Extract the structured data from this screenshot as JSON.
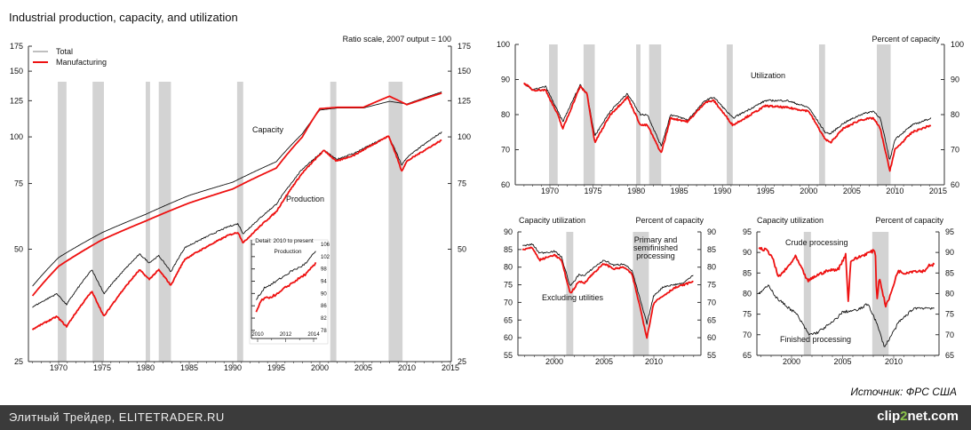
{
  "footer": {
    "site_label": "Элитный Трейдер, ELITETRADER.RU",
    "logo_prefix": "clip",
    "logo_mid": "2",
    "logo_suffix": "net.com"
  },
  "source_label": "Источник: ФРС США",
  "colors": {
    "total": "#111111",
    "manufacturing": "#ee1111",
    "recession": "#d3d3d3"
  },
  "chart_data": [
    {
      "id": "main",
      "type": "line",
      "title": "Industrial production, capacity, and utilization",
      "subtitle": "Ratio scale, 2007 output = 100",
      "yscale": "log",
      "ylim": [
        25,
        175
      ],
      "yticks": [
        25,
        50,
        75,
        100,
        125,
        150,
        175
      ],
      "xlim": [
        1967,
        2015
      ],
      "xticks": [
        1970,
        1975,
        1980,
        1985,
        1990,
        1995,
        2000,
        2005,
        2010,
        2015
      ],
      "legend": {
        "position": "top-left",
        "entries": [
          "Total",
          "Manufacturing"
        ]
      },
      "annotations": [
        "Capacity",
        "Production"
      ],
      "recessions": [
        [
          1969.9,
          1970.9
        ],
        [
          1973.9,
          1975.2
        ],
        [
          1980.0,
          1980.5
        ],
        [
          1981.5,
          1982.9
        ],
        [
          1990.5,
          1991.2
        ],
        [
          2001.2,
          2001.9
        ],
        [
          2007.9,
          2009.5
        ]
      ],
      "series": [
        {
          "name": "Capacity - Total",
          "color": "total",
          "x": [
            1967,
            1970,
            1975,
            1980,
            1985,
            1990,
            1995,
            1998,
            2000,
            2002,
            2005,
            2008,
            2010,
            2014
          ],
          "y": [
            39.8,
            47.5,
            55.4,
            62,
            69.7,
            75.6,
            85.8,
            102,
            118,
            119.5,
            119.5,
            124.5,
            122.5,
            132
          ]
        },
        {
          "name": "Capacity - Manufacturing",
          "color": "manufacturing",
          "x": [
            1967,
            1970,
            1975,
            1980,
            1985,
            1990,
            1995,
            1998,
            2000,
            2002,
            2005,
            2008,
            2010,
            2014
          ],
          "y": [
            37.5,
            45,
            53,
            59.5,
            66.5,
            72.5,
            82.5,
            100,
            119,
            120,
            120,
            128.5,
            122,
            131
          ]
        },
        {
          "name": "Production - Total",
          "color": "total",
          "x": [
            1967,
            1969.8,
            1970.9,
            1973.8,
            1975.2,
            1979.3,
            1980.4,
            1981.5,
            1982.9,
            1984.5,
            1989.5,
            1990.6,
            1991.2,
            1995,
            1998,
            2000.5,
            2001.9,
            2004,
            2007.9,
            2009.4,
            2010,
            2014
          ],
          "y": [
            35,
            38,
            35.5,
            44,
            38,
            48.5,
            46,
            48,
            43.5,
            50.5,
            57.5,
            58.5,
            55,
            66,
            82,
            92,
            87,
            90.5,
            100.5,
            84,
            88,
            103
          ]
        },
        {
          "name": "Production - Manufacturing",
          "color": "manufacturing",
          "x": [
            1967,
            1969.8,
            1970.9,
            1973.8,
            1975.2,
            1979.3,
            1980.4,
            1981.5,
            1982.9,
            1984.5,
            1989.5,
            1990.6,
            1991.2,
            1995,
            1998,
            2000.5,
            2001.9,
            2004,
            2007.9,
            2009.4,
            2010,
            2014
          ],
          "y": [
            30.5,
            33,
            31,
            38.5,
            33,
            44,
            41.5,
            44,
            40,
            47,
            54.5,
            55.5,
            52,
            63,
            80,
            92,
            86,
            89.5,
            100.5,
            81,
            86,
            98
          ]
        }
      ]
    },
    {
      "id": "inset",
      "type": "line",
      "title": "Detail: 2010 to present",
      "subtitle": "Production",
      "ylim": [
        76,
        108
      ],
      "yticks": [
        78,
        82,
        86,
        90,
        94,
        98,
        102,
        106
      ],
      "xlim": [
        2009.8,
        2014.3
      ],
      "xticks": [
        2010,
        2012,
        2014
      ],
      "series": [
        {
          "name": "Total",
          "color": "total",
          "x": [
            2009.9,
            2010.5,
            2011,
            2011.5,
            2012,
            2012.5,
            2013,
            2013.5,
            2014.2
          ],
          "y": [
            88,
            92,
            93,
            94.5,
            96,
            97.5,
            98.5,
            100,
            104
          ]
        },
        {
          "name": "Manufacturing",
          "color": "manufacturing",
          "x": [
            2009.9,
            2010.3,
            2011,
            2011.5,
            2012,
            2012.5,
            2013,
            2013.5,
            2014.2
          ],
          "y": [
            84,
            88,
            89,
            90,
            92,
            93.5,
            95,
            96.5,
            100
          ]
        }
      ]
    },
    {
      "id": "utilization",
      "type": "line",
      "subtitle": "Percent of capacity",
      "annotations": [
        "Utilization"
      ],
      "ylim": [
        60,
        100
      ],
      "yticks": [
        60,
        70,
        80,
        90,
        100
      ],
      "xlim": [
        1967,
        2014.5
      ],
      "xticks": [
        1970,
        1975,
        1980,
        1985,
        1990,
        1995,
        2000,
        2005,
        2010,
        2015
      ],
      "recessions": [
        [
          1969.9,
          1970.9
        ],
        [
          1973.9,
          1975.2
        ],
        [
          1980.0,
          1980.5
        ],
        [
          1981.5,
          1982.9
        ],
        [
          1990.5,
          1991.2
        ],
        [
          2001.2,
          2001.9
        ],
        [
          2007.9,
          2009.5
        ]
      ],
      "series": [
        {
          "name": "Total",
          "color": "total",
          "x": [
            1967,
            1968,
            1969.5,
            1970.9,
            1971.5,
            1973.5,
            1974.3,
            1975.2,
            1977,
            1979,
            1980.5,
            1981.3,
            1982.9,
            1984,
            1986,
            1988,
            1989,
            1991.2,
            1995,
            1997.5,
            2000,
            2001.9,
            2002.5,
            2004,
            2006,
            2007.5,
            2008.3,
            2009.4,
            2010,
            2012,
            2014.2
          ],
          "y": [
            89,
            87,
            88,
            81,
            78,
            88.5,
            86,
            74,
            81,
            86,
            80,
            80,
            71,
            80,
            78.5,
            84,
            85,
            79,
            84,
            84,
            82,
            75,
            74.5,
            77.5,
            80,
            81,
            79,
            67,
            73,
            77,
            79
          ]
        },
        {
          "name": "Manufacturing",
          "color": "manufacturing",
          "x": [
            1967,
            1968,
            1969.5,
            1970.9,
            1971.5,
            1973.5,
            1974.3,
            1975.2,
            1977,
            1979,
            1980.5,
            1981.3,
            1982.9,
            1984,
            1986,
            1988,
            1989,
            1991.2,
            1995,
            1997.5,
            2000,
            2001.9,
            2002.5,
            2004,
            2006,
            2007.5,
            2008.3,
            2009.4,
            2010,
            2012,
            2014.2
          ],
          "y": [
            89,
            87,
            87,
            80,
            76,
            88,
            86,
            72,
            80,
            85,
            77,
            77,
            69,
            79,
            78,
            83.5,
            84,
            77,
            82.5,
            82,
            81,
            73,
            72,
            76,
            78.5,
            79,
            76,
            64,
            70,
            75,
            77
          ]
        }
      ]
    },
    {
      "id": "stage-a",
      "type": "line",
      "title": "Capacity utilization",
      "subtitle": "Percent of capacity",
      "annotations": [
        "Primary and",
        "semifinished",
        "processing",
        "Excluding utilities"
      ],
      "ylim": [
        55,
        90
      ],
      "yticks": [
        55,
        60,
        65,
        70,
        75,
        80,
        85,
        90
      ],
      "xlim": [
        1996.8,
        2014
      ],
      "xticks": [
        2000,
        2005,
        2010
      ],
      "recessions": [
        [
          2001.2,
          2001.9
        ],
        [
          2007.9,
          2009.5
        ]
      ],
      "series": [
        {
          "name": "Primary and semifinished processing",
          "color": "total",
          "x": [
            1996.8,
            1997.8,
            1998.5,
            2000,
            2000.7,
            2001.6,
            2002.5,
            2003,
            2004,
            2005,
            2006,
            2007,
            2007.8,
            2008.5,
            2009.3,
            2010,
            2011,
            2012,
            2013,
            2014
          ],
          "y": [
            86,
            86.5,
            84,
            84.5,
            83,
            74.5,
            78,
            77.5,
            80,
            82,
            80.5,
            81,
            79,
            72,
            64,
            72,
            74.5,
            75,
            75.5,
            78
          ]
        },
        {
          "name": "Excluding utilities",
          "color": "manufacturing",
          "x": [
            1996.8,
            1997.8,
            1998.5,
            2000,
            2000.7,
            2001.6,
            2002.5,
            2003,
            2004,
            2005,
            2006,
            2007,
            2007.8,
            2008.5,
            2009.3,
            2010,
            2011,
            2012,
            2013,
            2014
          ],
          "y": [
            85,
            85.5,
            82,
            83.5,
            82,
            72.5,
            76,
            75.5,
            78.5,
            81,
            79.5,
            80,
            78,
            70,
            60,
            70,
            72,
            74,
            75,
            76
          ]
        }
      ]
    },
    {
      "id": "stage-b",
      "type": "line",
      "title": "Capacity utilization",
      "subtitle": "Percent of capacity",
      "annotations": [
        "Crude processing",
        "Finished processing"
      ],
      "ylim": [
        65,
        95
      ],
      "yticks": [
        65,
        70,
        75,
        80,
        85,
        90,
        95
      ],
      "xlim": [
        1996.8,
        2014
      ],
      "xticks": [
        2000,
        2005,
        2010
      ],
      "recessions": [
        [
          2001.2,
          2001.9
        ],
        [
          2007.9,
          2009.5
        ]
      ],
      "series": [
        {
          "name": "Crude processing",
          "color": "manufacturing",
          "x": [
            1996.8,
            1997.6,
            1998.1,
            1998.7,
            1999.5,
            2000.4,
            2001,
            2001.6,
            2002.5,
            2003.5,
            2004.6,
            2005.3,
            2005.55,
            2005.8,
            2006.3,
            2007.6,
            2008.2,
            2008.35,
            2008.6,
            2009.2,
            2009.6,
            2010.4,
            2011,
            2012,
            2013,
            2013.5,
            2014
          ],
          "y": [
            91,
            90.5,
            89,
            84,
            86,
            89,
            86,
            83,
            84.5,
            85.5,
            86,
            89.5,
            78,
            88,
            88.5,
            90,
            90.5,
            78,
            84,
            77,
            79,
            85.5,
            85,
            85.5,
            85.5,
            87,
            87
          ]
        },
        {
          "name": "Finished processing",
          "color": "total",
          "x": [
            1996.8,
            1997.8,
            1998.5,
            1999.5,
            2000.5,
            2001.7,
            2002.5,
            2004,
            2005,
            2006.5,
            2007.5,
            2008.3,
            2009.1,
            2009.8,
            2010.5,
            2012,
            2013,
            2014
          ],
          "y": [
            80,
            82,
            79,
            77,
            75,
            70,
            70.5,
            73,
            75.5,
            76,
            77.5,
            73,
            67,
            70,
            73,
            76.5,
            76.5,
            76.5
          ]
        }
      ]
    }
  ]
}
